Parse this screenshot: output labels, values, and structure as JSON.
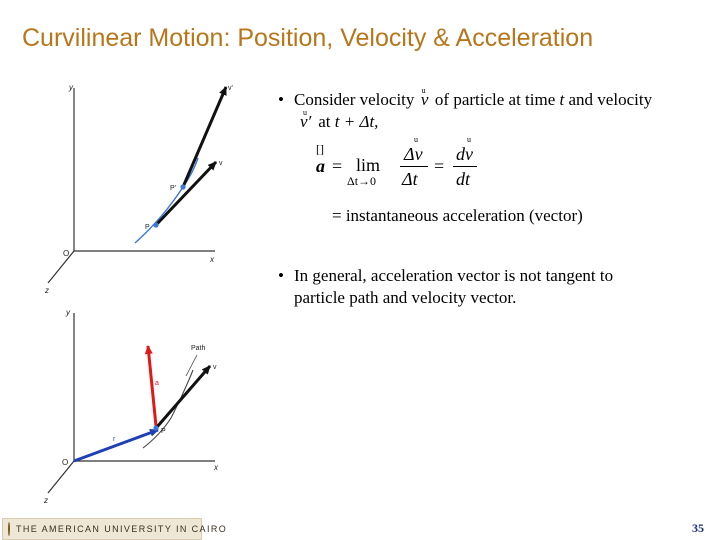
{
  "title": "Curvilinear Motion:  Position, Velocity & Acceleration",
  "figure_top": {
    "axis_y": "y",
    "axis_x": "x",
    "axis_z": "z",
    "origin": "O",
    "pt_P": "P",
    "pt_Pprime": "P'",
    "vec_v": "v",
    "vec_vprime": "v'"
  },
  "figure_bottom": {
    "axis_y": "y",
    "axis_x": "x",
    "axis_z": "z",
    "origin": "O",
    "pt_P": "P",
    "vec_v": "v",
    "vec_a": "a",
    "vec_r": "r",
    "path_label": "Path"
  },
  "bullet1": {
    "line1_a": "Consider velocity",
    "line1_b": "of particle at time",
    "line1_t": "t",
    "line1_c": "and velocity",
    "line2_a": "at",
    "line2_b": "t + Δt,",
    "arrow_mark": "u",
    "v": "v",
    "vprime": "v′"
  },
  "equation": {
    "boxmark": "[]",
    "a": "a",
    "eq1": "=",
    "lim": "lim",
    "lim_sub": "Δt→0",
    "num1": "Δv",
    "den1": "Δt",
    "eq2": "=",
    "num2": "dv",
    "den2": "dt",
    "arrow_mark": "u"
  },
  "instantaneous": "=  instantaneous acceleration (vector)",
  "bullet2": {
    "line1": "In general, acceleration vector is not tangent to",
    "line2": "particle path and velocity vector."
  },
  "bullet_char": "•",
  "footer": {
    "logo_text": "THE AMERICAN UNIVERSITY IN CAIRO",
    "page_number": "35"
  },
  "colors": {
    "title": "#b8761b",
    "vector_black": "#111111",
    "path_blue": "#3a78d8",
    "accel_red": "#e01818",
    "position_blue": "#1f3fb5",
    "page_number": "#1d2f7a"
  }
}
